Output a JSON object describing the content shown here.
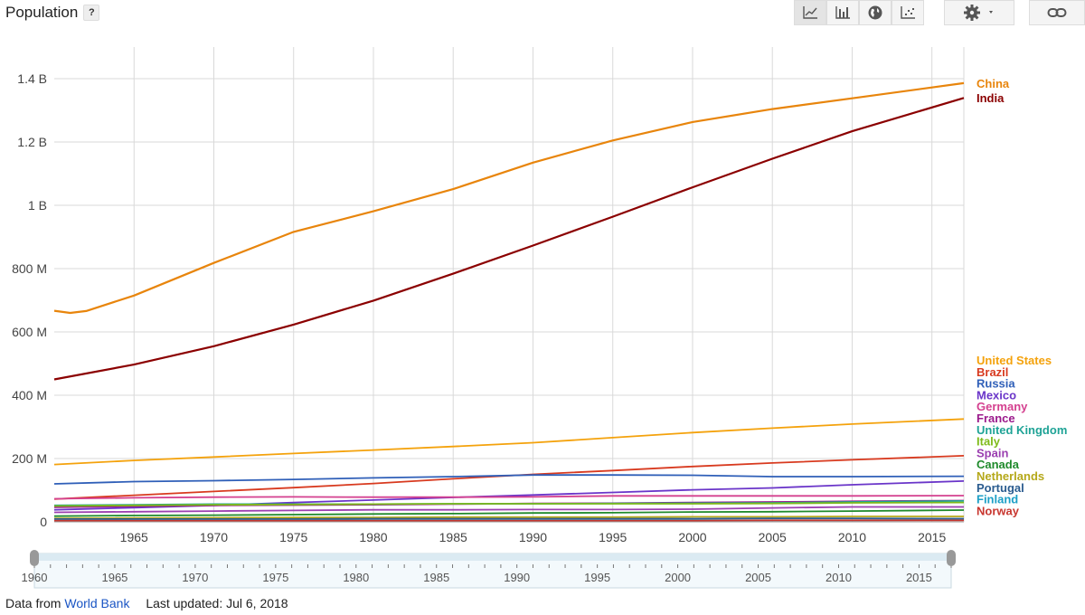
{
  "header": {
    "title": "Population",
    "help_label": "?"
  },
  "toolbar": {
    "icons": [
      "line-chart-icon",
      "bar-chart-icon",
      "globe-icon",
      "scatter-icon",
      "gear-icon",
      "link-icon"
    ]
  },
  "footer": {
    "data_from_label": "Data from",
    "source_link": "World Bank",
    "last_updated": "Last updated: Jul 6, 2018"
  },
  "chart_data": {
    "type": "line",
    "title": "Population",
    "xlabel": "",
    "ylabel": "",
    "xlim": [
      1960,
      2017
    ],
    "ylim": [
      0,
      1500000000
    ],
    "y_ticks": [
      {
        "value": 0,
        "label": "0"
      },
      {
        "value": 200000000,
        "label": "200 M"
      },
      {
        "value": 400000000,
        "label": "400 M"
      },
      {
        "value": 600000000,
        "label": "600 M"
      },
      {
        "value": 800000000,
        "label": "800 M"
      },
      {
        "value": 1000000000,
        "label": "1 B"
      },
      {
        "value": 1200000000,
        "label": "1.2 B"
      },
      {
        "value": 1400000000,
        "label": "1.4 B"
      }
    ],
    "x_ticks": [
      1965,
      1970,
      1975,
      1980,
      1985,
      1990,
      1995,
      2000,
      2005,
      2010,
      2015
    ],
    "grid": true,
    "legend_position": "right",
    "series": [
      {
        "name": "China",
        "color": "#e8850c",
        "points": [
          [
            1960,
            667
          ],
          [
            1961,
            660
          ],
          [
            1962,
            666
          ],
          [
            1965,
            715
          ],
          [
            1970,
            818
          ],
          [
            1975,
            916
          ],
          [
            1980,
            981
          ],
          [
            1985,
            1051
          ],
          [
            1990,
            1135
          ],
          [
            1995,
            1205
          ],
          [
            2000,
            1263
          ],
          [
            2005,
            1304
          ],
          [
            2010,
            1338
          ],
          [
            2017,
            1386
          ]
        ]
      },
      {
        "name": "India",
        "color": "#8b0000",
        "points": [
          [
            1960,
            450
          ],
          [
            1965,
            497
          ],
          [
            1970,
            555
          ],
          [
            1975,
            623
          ],
          [
            1980,
            699
          ],
          [
            1985,
            784
          ],
          [
            1990,
            873
          ],
          [
            1995,
            964
          ],
          [
            2000,
            1057
          ],
          [
            2005,
            1147
          ],
          [
            2010,
            1234
          ],
          [
            2017,
            1339
          ]
        ]
      },
      {
        "name": "United States",
        "color": "#f4a20c",
        "points": [
          [
            1960,
            181
          ],
          [
            1965,
            194
          ],
          [
            1970,
            205
          ],
          [
            1975,
            216
          ],
          [
            1980,
            227
          ],
          [
            1985,
            238
          ],
          [
            1990,
            250
          ],
          [
            1995,
            266
          ],
          [
            2000,
            282
          ],
          [
            2005,
            296
          ],
          [
            2010,
            309
          ],
          [
            2017,
            325
          ]
        ]
      },
      {
        "name": "Brazil",
        "color": "#d83a1f",
        "points": [
          [
            1960,
            72
          ],
          [
            1965,
            84
          ],
          [
            1970,
            96
          ],
          [
            1975,
            108
          ],
          [
            1980,
            121
          ],
          [
            1985,
            136
          ],
          [
            1990,
            150
          ],
          [
            1995,
            162
          ],
          [
            2000,
            175
          ],
          [
            2005,
            186
          ],
          [
            2010,
            196
          ],
          [
            2017,
            209
          ]
        ]
      },
      {
        "name": "Russia",
        "color": "#2f5fb8",
        "points": [
          [
            1960,
            120
          ],
          [
            1965,
            127
          ],
          [
            1970,
            130
          ],
          [
            1975,
            134
          ],
          [
            1980,
            139
          ],
          [
            1985,
            143
          ],
          [
            1990,
            148
          ],
          [
            1995,
            148
          ],
          [
            2000,
            147
          ],
          [
            2005,
            143
          ],
          [
            2010,
            143
          ],
          [
            2017,
            144
          ]
        ]
      },
      {
        "name": "Mexico",
        "color": "#6a35c9",
        "points": [
          [
            1960,
            38
          ],
          [
            1965,
            45
          ],
          [
            1970,
            52
          ],
          [
            1975,
            61
          ],
          [
            1980,
            69
          ],
          [
            1985,
            77
          ],
          [
            1990,
            85
          ],
          [
            1995,
            93
          ],
          [
            2000,
            101
          ],
          [
            2005,
            107
          ],
          [
            2010,
            117
          ],
          [
            2017,
            129
          ]
        ]
      },
      {
        "name": "Germany",
        "color": "#d4408f",
        "points": [
          [
            1960,
            73
          ],
          [
            1965,
            76
          ],
          [
            1970,
            78
          ],
          [
            1975,
            79
          ],
          [
            1980,
            78
          ],
          [
            1985,
            78
          ],
          [
            1990,
            79
          ],
          [
            1995,
            82
          ],
          [
            2000,
            82
          ],
          [
            2005,
            82
          ],
          [
            2010,
            82
          ],
          [
            2017,
            83
          ]
        ]
      },
      {
        "name": "France",
        "color": "#9b1a8c",
        "points": [
          [
            1960,
            46
          ],
          [
            1965,
            49
          ],
          [
            1970,
            52
          ],
          [
            1975,
            53
          ],
          [
            1980,
            54
          ],
          [
            1985,
            56
          ],
          [
            1990,
            58
          ],
          [
            1995,
            59
          ],
          [
            2000,
            61
          ],
          [
            2005,
            63
          ],
          [
            2010,
            65
          ],
          [
            2017,
            67
          ]
        ]
      },
      {
        "name": "United Kingdom",
        "color": "#1fa396",
        "points": [
          [
            1960,
            52
          ],
          [
            1965,
            54
          ],
          [
            1970,
            56
          ],
          [
            1975,
            56
          ],
          [
            1980,
            56
          ],
          [
            1985,
            57
          ],
          [
            1990,
            57
          ],
          [
            1995,
            58
          ],
          [
            2000,
            59
          ],
          [
            2005,
            60
          ],
          [
            2010,
            63
          ],
          [
            2017,
            66
          ]
        ]
      },
      {
        "name": "Italy",
        "color": "#7fba1a",
        "points": [
          [
            1960,
            50
          ],
          [
            1965,
            52
          ],
          [
            1970,
            54
          ],
          [
            1975,
            55
          ],
          [
            1980,
            56
          ],
          [
            1985,
            57
          ],
          [
            1990,
            57
          ],
          [
            1995,
            57
          ],
          [
            2000,
            57
          ],
          [
            2005,
            58
          ],
          [
            2010,
            60
          ],
          [
            2017,
            61
          ]
        ]
      },
      {
        "name": "Spain",
        "color": "#9b3fb0",
        "points": [
          [
            1960,
            30
          ],
          [
            1965,
            32
          ],
          [
            1970,
            34
          ],
          [
            1975,
            36
          ],
          [
            1980,
            38
          ],
          [
            1985,
            38
          ],
          [
            1990,
            39
          ],
          [
            1995,
            39
          ],
          [
            2000,
            40
          ],
          [
            2005,
            44
          ],
          [
            2010,
            47
          ],
          [
            2017,
            47
          ]
        ]
      },
      {
        "name": "Canada",
        "color": "#1f8a2b",
        "points": [
          [
            1960,
            18
          ],
          [
            1965,
            20
          ],
          [
            1970,
            21
          ],
          [
            1975,
            23
          ],
          [
            1980,
            25
          ],
          [
            1985,
            26
          ],
          [
            1990,
            28
          ],
          [
            1995,
            29
          ],
          [
            2000,
            31
          ],
          [
            2005,
            32
          ],
          [
            2010,
            34
          ],
          [
            2017,
            37
          ]
        ]
      },
      {
        "name": "Netherlands",
        "color": "#b5a81a",
        "points": [
          [
            1960,
            11
          ],
          [
            1965,
            12
          ],
          [
            1970,
            13
          ],
          [
            1975,
            14
          ],
          [
            1980,
            14
          ],
          [
            1985,
            15
          ],
          [
            1990,
            15
          ],
          [
            1995,
            15
          ],
          [
            2000,
            16
          ],
          [
            2005,
            16
          ],
          [
            2010,
            17
          ],
          [
            2017,
            17
          ]
        ]
      },
      {
        "name": "Portugal",
        "color": "#2b5c8f",
        "points": [
          [
            1960,
            9
          ],
          [
            1965,
            9
          ],
          [
            1970,
            9
          ],
          [
            1975,
            9
          ],
          [
            1980,
            10
          ],
          [
            1985,
            10
          ],
          [
            1990,
            10
          ],
          [
            1995,
            10
          ],
          [
            2000,
            10
          ],
          [
            2005,
            11
          ],
          [
            2010,
            11
          ],
          [
            2017,
            10
          ]
        ]
      },
      {
        "name": "Finland",
        "color": "#1c9fc6",
        "points": [
          [
            1960,
            4
          ],
          [
            1965,
            5
          ],
          [
            1970,
            5
          ],
          [
            1975,
            5
          ],
          [
            1980,
            5
          ],
          [
            1985,
            5
          ],
          [
            1990,
            5
          ],
          [
            1995,
            5
          ],
          [
            2000,
            5
          ],
          [
            2005,
            5
          ],
          [
            2010,
            5
          ],
          [
            2017,
            6
          ]
        ]
      },
      {
        "name": "Norway",
        "color": "#c8362f",
        "points": [
          [
            1960,
            4
          ],
          [
            1965,
            4
          ],
          [
            1970,
            4
          ],
          [
            1975,
            4
          ],
          [
            1980,
            4
          ],
          [
            1985,
            4
          ],
          [
            1990,
            4
          ],
          [
            1995,
            4
          ],
          [
            2000,
            4
          ],
          [
            2005,
            5
          ],
          [
            2010,
            5
          ],
          [
            2017,
            5
          ]
        ]
      }
    ]
  },
  "slider": {
    "start_label": "1960",
    "tick_labels": [
      "1965",
      "1970",
      "1975",
      "1980",
      "1985",
      "1990",
      "1995",
      "2000",
      "2005",
      "2010",
      "2015"
    ]
  }
}
